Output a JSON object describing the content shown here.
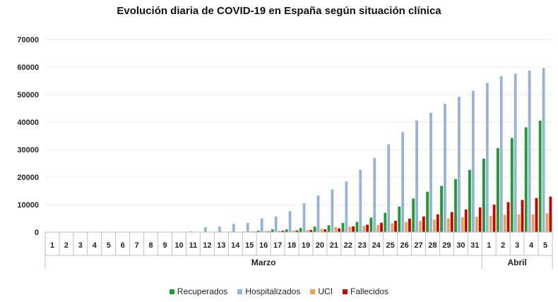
{
  "chart_data": {
    "type": "bar",
    "title": "Evolución diaria de COVID-19 en España según situación clínica",
    "xlabel": "",
    "ylabel": "",
    "ylim": [
      0,
      70000
    ],
    "yticks": [
      0,
      10000,
      20000,
      30000,
      40000,
      50000,
      60000,
      70000
    ],
    "grid": true,
    "legend_position": "bottom",
    "categories": [
      "1",
      "2",
      "3",
      "4",
      "5",
      "6",
      "7",
      "8",
      "9",
      "10",
      "11",
      "12",
      "13",
      "14",
      "15",
      "16",
      "17",
      "18",
      "19",
      "20",
      "21",
      "22",
      "23",
      "24",
      "25",
      "26",
      "27",
      "28",
      "29",
      "30",
      "31",
      "1",
      "2",
      "3",
      "4",
      "5"
    ],
    "groups": [
      {
        "label": "Marzo",
        "count": 31
      },
      {
        "label": "Abril",
        "count": 5
      }
    ],
    "series": [
      {
        "name": "Recuperados",
        "color": "#1a9c30",
        "values": [
          0,
          0,
          0,
          0,
          0,
          0,
          0,
          0,
          0,
          0,
          0,
          0,
          0,
          200,
          200,
          500,
          1000,
          1000,
          1500,
          2000,
          2500,
          3300,
          3700,
          5300,
          7000,
          9300,
          12200,
          14700,
          16800,
          19300,
          22600,
          26700,
          30500,
          34200,
          38100,
          40500
        ]
      },
      {
        "name": "Hospitalizados",
        "color": "#95b3d7",
        "values": [
          0,
          0,
          0,
          0,
          0,
          0,
          0,
          0,
          0,
          0,
          300,
          1800,
          2000,
          3000,
          3300,
          5000,
          5700,
          7600,
          10500,
          13300,
          15500,
          18400,
          22700,
          27000,
          31900,
          36300,
          40600,
          43400,
          46600,
          49200,
          51400,
          54200,
          56700,
          57600,
          58700,
          59600
        ]
      },
      {
        "name": "UCI",
        "color": "#f0a050",
        "values": [
          0,
          0,
          0,
          0,
          0,
          0,
          0,
          0,
          0,
          0,
          0,
          100,
          100,
          150,
          300,
          400,
          500,
          600,
          700,
          1200,
          1800,
          2000,
          2300,
          2600,
          3200,
          3700,
          4100,
          4600,
          5000,
          5400,
          5600,
          5900,
          6300,
          6500,
          6500,
          6800
        ]
      },
      {
        "name": "Fallecidos",
        "color": "#cc0000",
        "values": [
          0,
          0,
          0,
          0,
          0,
          0,
          0,
          0,
          0,
          0,
          0,
          0,
          100,
          100,
          200,
          300,
          500,
          600,
          800,
          1000,
          1400,
          2100,
          2700,
          3400,
          4100,
          4900,
          5700,
          6500,
          7300,
          8200,
          9000,
          10000,
          10900,
          11700,
          12400,
          12900
        ]
      }
    ]
  }
}
